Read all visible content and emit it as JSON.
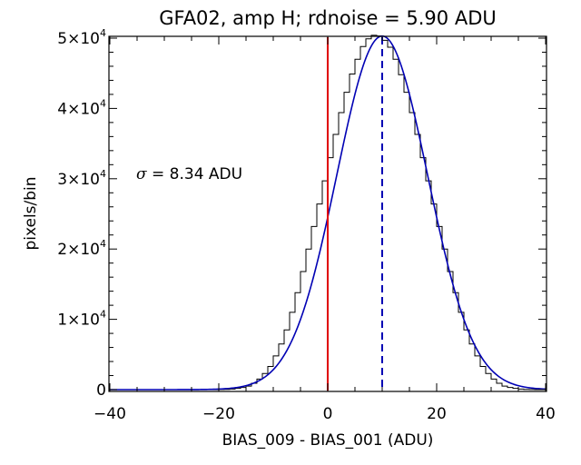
{
  "chart_data": {
    "type": "histogram",
    "title": "GFA02, amp H; rdnoise = 5.90 ADU",
    "xlabel": "BIAS_009 - BIAS_001 (ADU)",
    "ylabel": "pixels/bin",
    "xlim": [
      -40,
      40
    ],
    "ylim": [
      0,
      50000
    ],
    "xticks": [
      {
        "value": -40,
        "label": "−40"
      },
      {
        "value": -20,
        "label": "−20"
      },
      {
        "value": 0,
        "label": "0"
      },
      {
        "value": 20,
        "label": "20"
      },
      {
        "value": 40,
        "label": "40"
      }
    ],
    "yticks": [
      {
        "value": 0,
        "mant": "0",
        "exp": ""
      },
      {
        "value": 10000,
        "mant": "1×10",
        "exp": "4"
      },
      {
        "value": 20000,
        "mant": "2×10",
        "exp": "4"
      },
      {
        "value": 30000,
        "mant": "3×10",
        "exp": "4"
      },
      {
        "value": 40000,
        "mant": "4×10",
        "exp": "4"
      },
      {
        "value": 50000,
        "mant": "5×10",
        "exp": "4"
      }
    ],
    "histogram": {
      "color": "#000000",
      "bin_width": 1,
      "x": [
        -40,
        -39,
        -38,
        -37,
        -36,
        -35,
        -34,
        -33,
        -32,
        -31,
        -30,
        -29,
        -28,
        -27,
        -26,
        -25,
        -24,
        -23,
        -22,
        -21,
        -20,
        -19,
        -18,
        -17,
        -16,
        -15,
        -14,
        -13,
        -12,
        -11,
        -10,
        -9,
        -8,
        -7,
        -6,
        -5,
        -4,
        -3,
        -2,
        -1,
        0,
        1,
        2,
        3,
        4,
        5,
        6,
        7,
        8,
        9,
        10,
        11,
        12,
        13,
        14,
        15,
        16,
        17,
        18,
        19,
        20,
        21,
        22,
        23,
        24,
        25,
        26,
        27,
        28,
        29,
        30,
        31,
        32,
        33,
        34,
        35,
        36,
        37,
        38,
        39
      ],
      "values": [
        0,
        0,
        0,
        0,
        0,
        0,
        0,
        0,
        0,
        0,
        0,
        0,
        0,
        0,
        0,
        0,
        0,
        0,
        0,
        0,
        10,
        40,
        80,
        170,
        300,
        500,
        900,
        1500,
        2300,
        3300,
        4800,
        6500,
        8500,
        11000,
        13800,
        16800,
        20000,
        23200,
        26400,
        29700,
        33000,
        36300,
        39400,
        42300,
        44900,
        47000,
        48800,
        49900,
        50400,
        50300,
        49700,
        48700,
        47000,
        44800,
        42300,
        39400,
        36300,
        33000,
        29700,
        26400,
        23200,
        20000,
        16800,
        13800,
        11000,
        8500,
        6500,
        4800,
        3300,
        2300,
        1500,
        900,
        500,
        300,
        170,
        80,
        40,
        10,
        0,
        0
      ]
    },
    "fit": {
      "type": "gaussian",
      "color": "#0000b4",
      "amplitude": 50300,
      "mean": 10,
      "sigma": 8.34
    },
    "vlines": [
      {
        "x": 0,
        "color": "#e00000",
        "style": "solid"
      },
      {
        "x": 10,
        "color": "#0000b4",
        "style": "dashed"
      }
    ],
    "annotation": {
      "symbol": "σ",
      "text": " = 8.34 ADU"
    },
    "grid": false,
    "legend": "none"
  }
}
